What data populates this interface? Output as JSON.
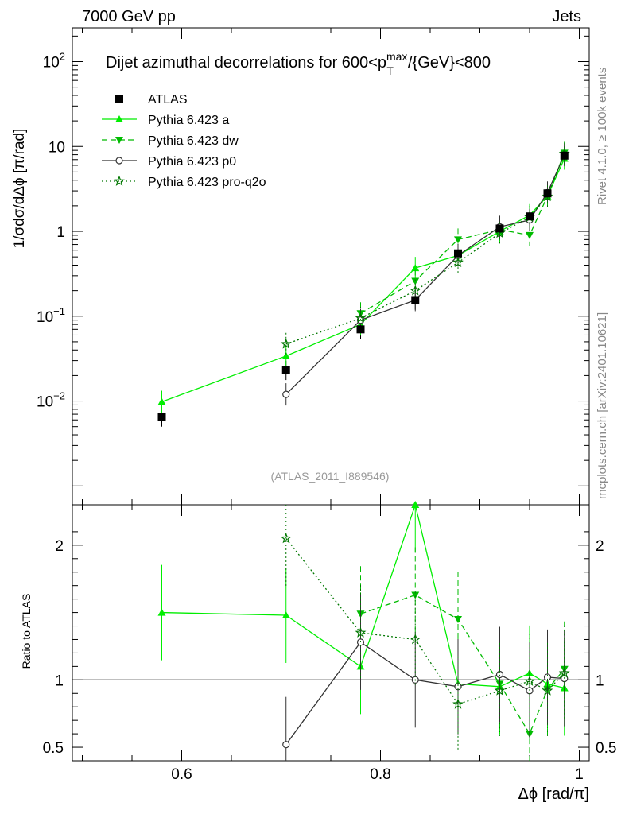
{
  "header": {
    "left": "7000 GeV pp",
    "right": "Jets"
  },
  "side": {
    "rivet": "Rivet 4.1.0, ≥ 100k events",
    "mcplots": "mcplots.cern.ch [arXiv:2401.10621]"
  },
  "chart_data": {
    "type": "line",
    "title": "Dijet azimuthal decorrelations for 600<p_T^max/{GeV}<800",
    "title_parts": {
      "before": "Dijet azimuthal decorrelations for 600<p",
      "sup": "max",
      "sub": "T",
      "after": "/{GeV}<800"
    },
    "analysis_label": "(ATLAS_2011_I889546)",
    "xlabel": "Δϕ [rad/π]",
    "ylabel": "1/σdσ/dΔϕ [π/rad]",
    "ratio_ylabel": "Ratio to ATLAS",
    "xlim": [
      0.49,
      1.01
    ],
    "ylim": [
      0.0006,
      250
    ],
    "ratio_ylim": [
      0.4,
      2.3
    ],
    "x_ticks": [
      "0.6",
      "0.8",
      "1"
    ],
    "x_tick_values": [
      0.6,
      0.8,
      1.0
    ],
    "y_ticks": [
      {
        "value": 100,
        "base": "10",
        "exp": "2"
      },
      {
        "value": 10,
        "base": "10",
        "exp": ""
      },
      {
        "value": 1,
        "base": "1",
        "exp": ""
      },
      {
        "value": 0.1,
        "base": "10",
        "exp": "−1"
      },
      {
        "value": 0.01,
        "base": "10",
        "exp": "−2"
      }
    ],
    "ratio_ticks": [
      "2",
      "1",
      "0.5"
    ],
    "ratio_tick_values": [
      2,
      1,
      0.5
    ],
    "x": [
      0.58,
      0.705,
      0.78,
      0.835,
      0.878,
      0.92,
      0.95,
      0.968,
      0.985
    ],
    "series": [
      {
        "name": "ATLAS",
        "style": "data",
        "color": "#000000",
        "values": [
          0.0065,
          0.023,
          0.07,
          0.155,
          0.55,
          1.08,
          1.5,
          2.8,
          7.8
        ]
      },
      {
        "name": "Pythia 6.423 a",
        "style": "solid",
        "color": "#00ee00",
        "marker": "triangle-up",
        "values": [
          0.0098,
          0.034,
          0.08,
          0.37,
          0.52,
          1.0,
          1.55,
          2.6,
          7.2
        ],
        "ratio": [
          1.5,
          1.48,
          1.1,
          2.3,
          0.97,
          0.95,
          1.05,
          0.97,
          0.94
        ]
      },
      {
        "name": "Pythia 6.423 dw",
        "style": "dashed",
        "color": "#00bb00",
        "marker": "triangle-down",
        "values": [
          null,
          null,
          0.108,
          0.26,
          0.8,
          1.05,
          0.9,
          2.6,
          8.4
        ],
        "ratio": [
          null,
          null,
          1.49,
          1.63,
          1.45,
          0.97,
          0.6,
          0.93,
          1.08
        ]
      },
      {
        "name": "Pythia 6.423 p0",
        "style": "solid",
        "color": "#333333",
        "marker": "circle-open",
        "values": [
          null,
          0.012,
          0.09,
          0.155,
          0.52,
          1.13,
          1.36,
          2.86,
          7.9
        ],
        "ratio": [
          null,
          0.52,
          1.28,
          1.0,
          0.95,
          1.04,
          0.92,
          1.02,
          1.01
        ]
      },
      {
        "name": "Pythia 6.423 pro-q2o",
        "style": "dotted",
        "color": "#007700",
        "marker": "star",
        "values": [
          null,
          0.047,
          0.095,
          0.2,
          0.43,
          0.95,
          1.47,
          2.57,
          8.2
        ],
        "ratio": [
          null,
          2.05,
          1.35,
          1.3,
          0.82,
          0.92,
          0.99,
          0.92,
          1.05
        ]
      }
    ]
  }
}
